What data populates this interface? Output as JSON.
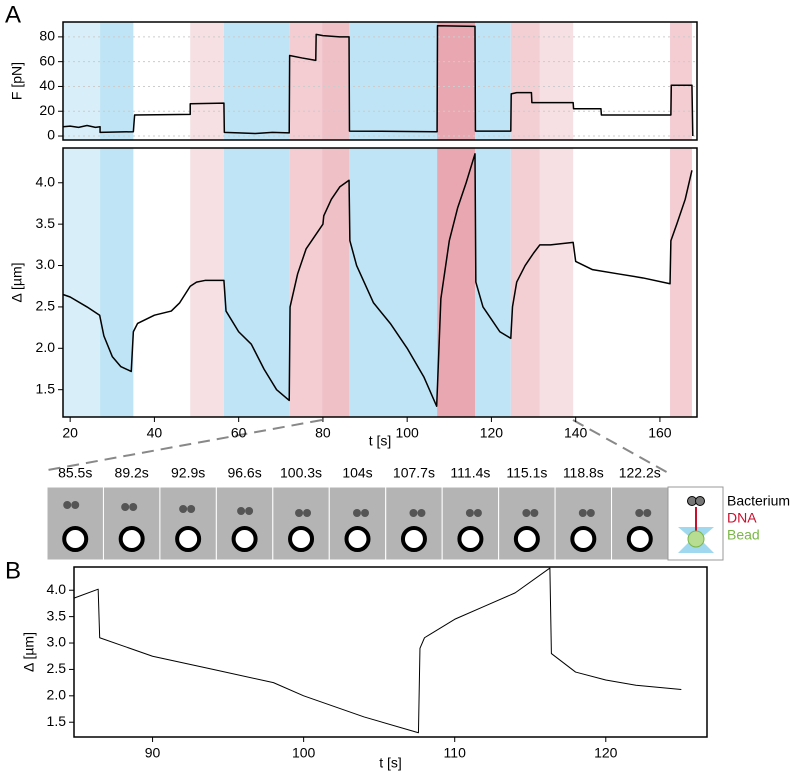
{
  "chart_data": [
    {
      "type": "line",
      "panel": "A",
      "ylabel": "F [pN]",
      "xlim": [
        18.3,
        168.8
      ],
      "ylim": [
        -3.2,
        92
      ],
      "yticks": [
        0,
        20,
        40,
        60,
        80
      ],
      "grid": true,
      "regions": [
        {
          "x": [
            18.3,
            27.1
          ],
          "color": "#d8eff9"
        },
        {
          "x": [
            27.1,
            35.0
          ],
          "color": "#bfe4f5"
        },
        {
          "x": [
            48.5,
            56.5
          ],
          "color": "#f7e0e3"
        },
        {
          "x": [
            56.5,
            72.0
          ],
          "color": "#bfe4f5"
        },
        {
          "x": [
            72.0,
            79.8
          ],
          "color": "#f3cdd2"
        },
        {
          "x": [
            79.8,
            86.2
          ],
          "color": "#efc0c6"
        },
        {
          "x": [
            86.2,
            107.1
          ],
          "color": "#bfe4f5"
        },
        {
          "x": [
            107.1,
            116.1
          ],
          "color": "#e9a8b1"
        },
        {
          "x": [
            116.1,
            124.6
          ],
          "color": "#bfe4f5"
        },
        {
          "x": [
            124.6,
            131.5
          ],
          "color": "#f3cfd4"
        },
        {
          "x": [
            131.5,
            139.4
          ],
          "color": "#f7e0e3"
        },
        {
          "x": [
            162.4,
            167.6
          ],
          "color": "#f3cdd2"
        }
      ],
      "series": [
        {
          "color": "#000000",
          "x": [
            18.3,
            20,
            22,
            24,
            26,
            27.1,
            27.1,
            35.0,
            35.3,
            48.5,
            48.5,
            56.5,
            56.6,
            60,
            64,
            68,
            72.0,
            72.1,
            75,
            78.3,
            78.4,
            80,
            84,
            86.2,
            86.3,
            107.1,
            107.2,
            116.1,
            116.2,
            124.6,
            124.7,
            126,
            129.5,
            129.6,
            139.4,
            139.5,
            146,
            146.1,
            162.6,
            162.7,
            167.6,
            167.8
          ],
          "values": [
            7.5,
            8,
            7,
            8.5,
            7,
            7.5,
            3,
            3.5,
            17,
            17.5,
            26,
            26.5,
            3,
            2.5,
            2,
            3,
            2.5,
            65,
            63,
            61,
            82,
            81,
            80,
            80,
            4,
            3.5,
            89,
            88.5,
            4,
            4,
            34,
            35,
            35,
            27,
            27,
            22,
            22,
            17,
            17,
            41,
            41,
            0
          ]
        }
      ]
    },
    {
      "type": "line",
      "ylabel": "Δ [µm]",
      "xlabel": "t [s]",
      "xlim": [
        18.3,
        168.8
      ],
      "ylim": [
        1.17,
        4.42
      ],
      "xticks": [
        20,
        40,
        60,
        80,
        100,
        120,
        140,
        160
      ],
      "yticks": [
        1.5,
        {
          "value": 2,
          "label": "2.0"
        },
        2.5,
        {
          "value": 3,
          "label": "3.0"
        },
        3.5,
        {
          "value": 4,
          "label": "4.0"
        }
      ],
      "regions": [
        {
          "x": [
            18.3,
            27.1
          ],
          "color": "#d8eff9"
        },
        {
          "x": [
            27.1,
            35.0
          ],
          "color": "#bfe4f5"
        },
        {
          "x": [
            48.5,
            56.5
          ],
          "color": "#f7e0e3"
        },
        {
          "x": [
            56.5,
            72.0
          ],
          "color": "#bfe4f5"
        },
        {
          "x": [
            72.0,
            79.8
          ],
          "color": "#f3cdd2"
        },
        {
          "x": [
            79.8,
            86.2
          ],
          "color": "#efc0c6"
        },
        {
          "x": [
            86.2,
            107.1
          ],
          "color": "#bfe4f5"
        },
        {
          "x": [
            107.1,
            116.1
          ],
          "color": "#e9a8b1"
        },
        {
          "x": [
            116.1,
            124.6
          ],
          "color": "#bfe4f5"
        },
        {
          "x": [
            124.6,
            131.5
          ],
          "color": "#f3cfd4"
        },
        {
          "x": [
            131.5,
            139.4
          ],
          "color": "#f7e0e3"
        },
        {
          "x": [
            162.4,
            167.6
          ],
          "color": "#f3cdd2"
        }
      ],
      "series": [
        {
          "color": "#000000",
          "x": [
            18.3,
            20,
            24,
            27,
            28,
            30,
            32,
            34.5,
            35,
            36,
            40,
            44,
            46,
            48.5,
            50,
            52,
            56.5,
            57,
            60,
            63,
            66,
            69,
            72,
            72.2,
            74,
            76,
            78,
            80,
            80.2,
            82,
            84,
            86.2,
            86.4,
            88,
            92,
            96,
            100,
            104,
            107,
            107.2,
            108,
            110,
            112,
            114,
            116.1,
            116.3,
            118,
            120,
            122,
            124.6,
            125,
            126,
            128,
            130,
            131.5,
            134,
            139.4,
            140,
            144,
            150,
            156,
            162.4,
            162.6,
            164,
            166,
            167.6
          ],
          "values": [
            2.65,
            2.62,
            2.5,
            2.4,
            2.15,
            1.9,
            1.78,
            1.72,
            2.2,
            2.3,
            2.4,
            2.45,
            2.55,
            2.75,
            2.8,
            2.82,
            2.82,
            2.45,
            2.2,
            2.05,
            1.75,
            1.5,
            1.37,
            2.5,
            2.9,
            3.2,
            3.35,
            3.5,
            3.6,
            3.8,
            3.95,
            4.03,
            3.3,
            3.0,
            2.55,
            2.3,
            2.0,
            1.65,
            1.3,
            1.55,
            2.6,
            3.3,
            3.7,
            4.0,
            4.35,
            2.8,
            2.5,
            2.35,
            2.2,
            2.12,
            2.5,
            2.8,
            3.0,
            3.15,
            3.25,
            3.25,
            3.28,
            3.05,
            2.95,
            2.9,
            2.85,
            2.78,
            3.3,
            3.5,
            3.8,
            4.15
          ]
        }
      ]
    },
    {
      "type": "line",
      "panel": "B",
      "ylabel": "Δ [µm]",
      "xlabel": "t [s]",
      "xlim": [
        84.8,
        126.7
      ],
      "ylim": [
        1.22,
        4.44
      ],
      "xticks": [
        90,
        100,
        110,
        120
      ],
      "yticks": [
        1.5,
        {
          "value": 2,
          "label": "2.0"
        },
        2.5,
        {
          "value": 3,
          "label": "3.0"
        },
        3.5,
        {
          "value": 4,
          "label": "4.0"
        }
      ],
      "series": [
        {
          "color": "#000000",
          "x": [
            84.8,
            86.4,
            86.5,
            88,
            90,
            94,
            98,
            100,
            104,
            107.6,
            107.7,
            108,
            110,
            112,
            114,
            116.3,
            116.4,
            118,
            120,
            122,
            125
          ],
          "values": [
            3.85,
            4.02,
            3.1,
            2.95,
            2.75,
            2.5,
            2.25,
            2.0,
            1.6,
            1.3,
            2.9,
            3.1,
            3.45,
            3.7,
            3.95,
            4.42,
            2.8,
            2.45,
            2.3,
            2.2,
            2.12
          ]
        }
      ]
    }
  ],
  "image_strip": {
    "labels": [
      "85.5s",
      "89.2s",
      "92.9s",
      "96.6s",
      "100.3s",
      "104s",
      "107.7s",
      "111.4s",
      "115.1s",
      "118.8s",
      "122.2s"
    ],
    "legend": [
      {
        "name": "Bacterium",
        "color": "#000000"
      },
      {
        "name": "DNA",
        "color": "#c8102e"
      },
      {
        "name": "Bead",
        "color": "#7ab648"
      }
    ]
  }
}
